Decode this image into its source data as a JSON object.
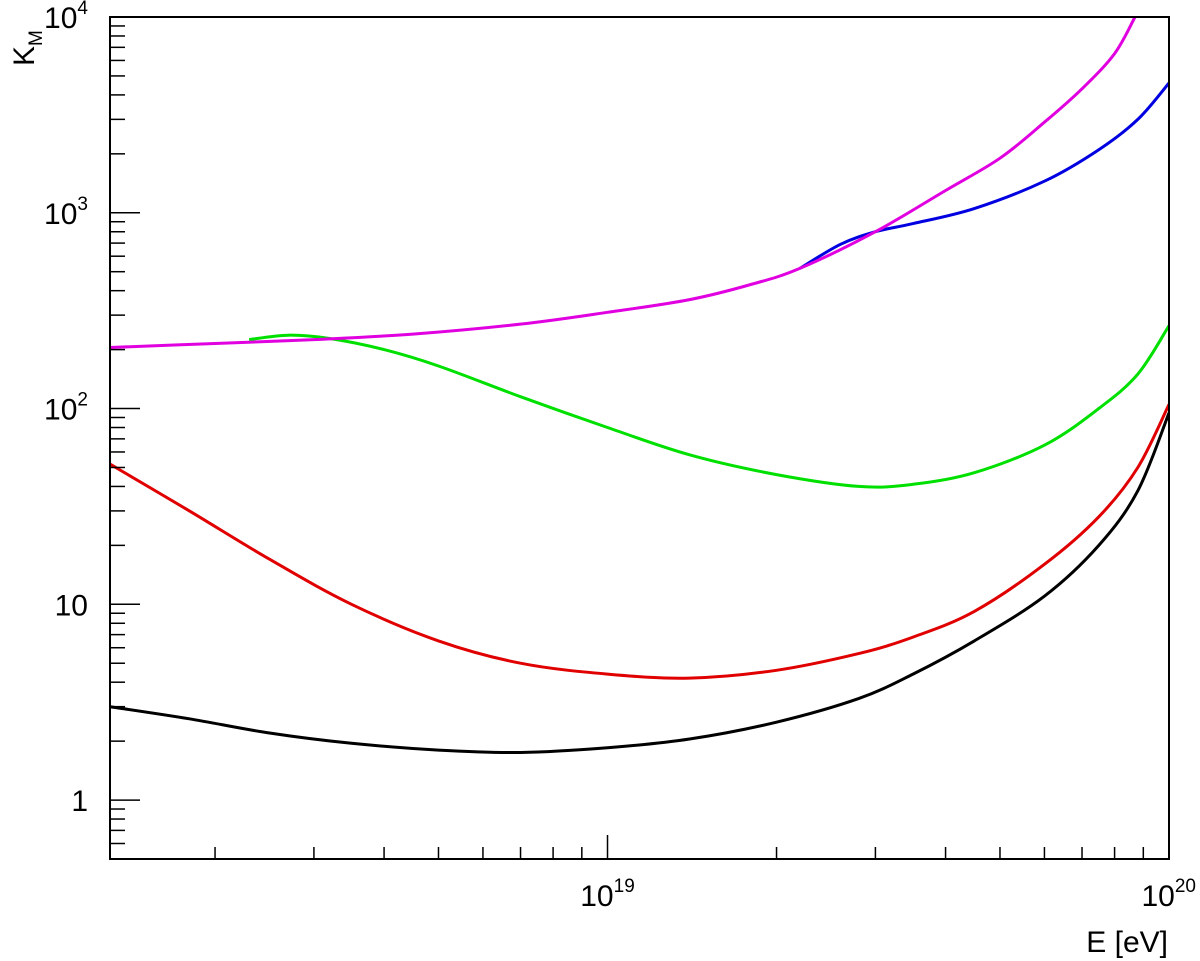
{
  "chart_data": {
    "type": "line",
    "xlabel": "E [eV]",
    "ylabel": {
      "main": "K",
      "sub": "M"
    },
    "x_scale": "log",
    "y_scale": "log",
    "xlim": [
      1.3e+18,
      1e+20
    ],
    "ylim": [
      0.5,
      10000
    ],
    "grid": false,
    "x_ticks": [
      {
        "value": 1e+19,
        "base": "10",
        "exp": "19"
      },
      {
        "value": 1e+20,
        "base": "10",
        "exp": "20"
      }
    ],
    "y_ticks": [
      {
        "value": 1,
        "base": "1",
        "exp": ""
      },
      {
        "value": 10,
        "base": "10",
        "exp": ""
      },
      {
        "value": 100,
        "base": "10",
        "exp": "2"
      },
      {
        "value": 1000,
        "base": "10",
        "exp": "3"
      },
      {
        "value": 10000,
        "base": "10",
        "exp": "4"
      }
    ],
    "series": [
      {
        "color": "#000000",
        "points": [
          [
            1.3e+18,
            3.0
          ],
          [
            1.8e+18,
            2.6
          ],
          [
            2.5e+18,
            2.2
          ],
          [
            3.5e+18,
            1.95
          ],
          [
            5e+18,
            1.8
          ],
          [
            7e+18,
            1.75
          ],
          [
            1e+19,
            1.85
          ],
          [
            1.4e+19,
            2.05
          ],
          [
            2e+19,
            2.5
          ],
          [
            2.8e+19,
            3.3
          ],
          [
            3.5e+19,
            4.4
          ],
          [
            4.5e+19,
            6.5
          ],
          [
            6e+19,
            11
          ],
          [
            7.5e+19,
            20
          ],
          [
            8.8e+19,
            38
          ],
          [
            1e+20,
            95
          ]
        ]
      },
      {
        "color": "#e00000",
        "points": [
          [
            1.3e+18,
            52
          ],
          [
            1.8e+18,
            30
          ],
          [
            2.5e+18,
            17
          ],
          [
            3.5e+18,
            10
          ],
          [
            5e+18,
            6.5
          ],
          [
            7e+18,
            5.0
          ],
          [
            1e+19,
            4.4
          ],
          [
            1.4e+19,
            4.2
          ],
          [
            2e+19,
            4.6
          ],
          [
            2.8e+19,
            5.6
          ],
          [
            3.5e+19,
            6.8
          ],
          [
            4.5e+19,
            9.2
          ],
          [
            6e+19,
            16
          ],
          [
            7.5e+19,
            28
          ],
          [
            8.8e+19,
            50
          ],
          [
            1e+20,
            105
          ]
        ]
      },
      {
        "color": "#00e000",
        "points": [
          [
            2.3e+18,
            225
          ],
          [
            2.7e+18,
            237
          ],
          [
            3.2e+18,
            228
          ],
          [
            4e+18,
            200
          ],
          [
            5e+18,
            165
          ],
          [
            7e+18,
            115
          ],
          [
            1e+19,
            80
          ],
          [
            1.4e+19,
            58
          ],
          [
            2e+19,
            46
          ],
          [
            2.8e+19,
            40
          ],
          [
            3.5e+19,
            41
          ],
          [
            4.5e+19,
            47
          ],
          [
            6e+19,
            65
          ],
          [
            7.5e+19,
            100
          ],
          [
            8.8e+19,
            150
          ],
          [
            1e+20,
            265
          ]
        ]
      },
      {
        "color": "#0000e0",
        "points": [
          [
            2.2e+19,
            520
          ],
          [
            2.6e+19,
            690
          ],
          [
            3e+19,
            800
          ],
          [
            3.5e+19,
            880
          ],
          [
            4.5e+19,
            1050
          ],
          [
            6e+19,
            1450
          ],
          [
            7.5e+19,
            2100
          ],
          [
            8.8e+19,
            3000
          ],
          [
            1e+20,
            4600
          ]
        ]
      },
      {
        "color": "#e000e0",
        "points": [
          [
            1.3e+18,
            205
          ],
          [
            2e+18,
            215
          ],
          [
            3e+18,
            225
          ],
          [
            4.5e+18,
            240
          ],
          [
            7e+18,
            270
          ],
          [
            1e+19,
            310
          ],
          [
            1.4e+19,
            360
          ],
          [
            1.8e+19,
            430
          ],
          [
            2.2e+19,
            520
          ],
          [
            3e+19,
            800
          ],
          [
            4e+19,
            1300
          ],
          [
            5e+19,
            1900
          ],
          [
            6e+19,
            2900
          ],
          [
            7e+19,
            4300
          ],
          [
            8e+19,
            6500
          ],
          [
            8.7e+19,
            10000
          ]
        ]
      }
    ]
  }
}
